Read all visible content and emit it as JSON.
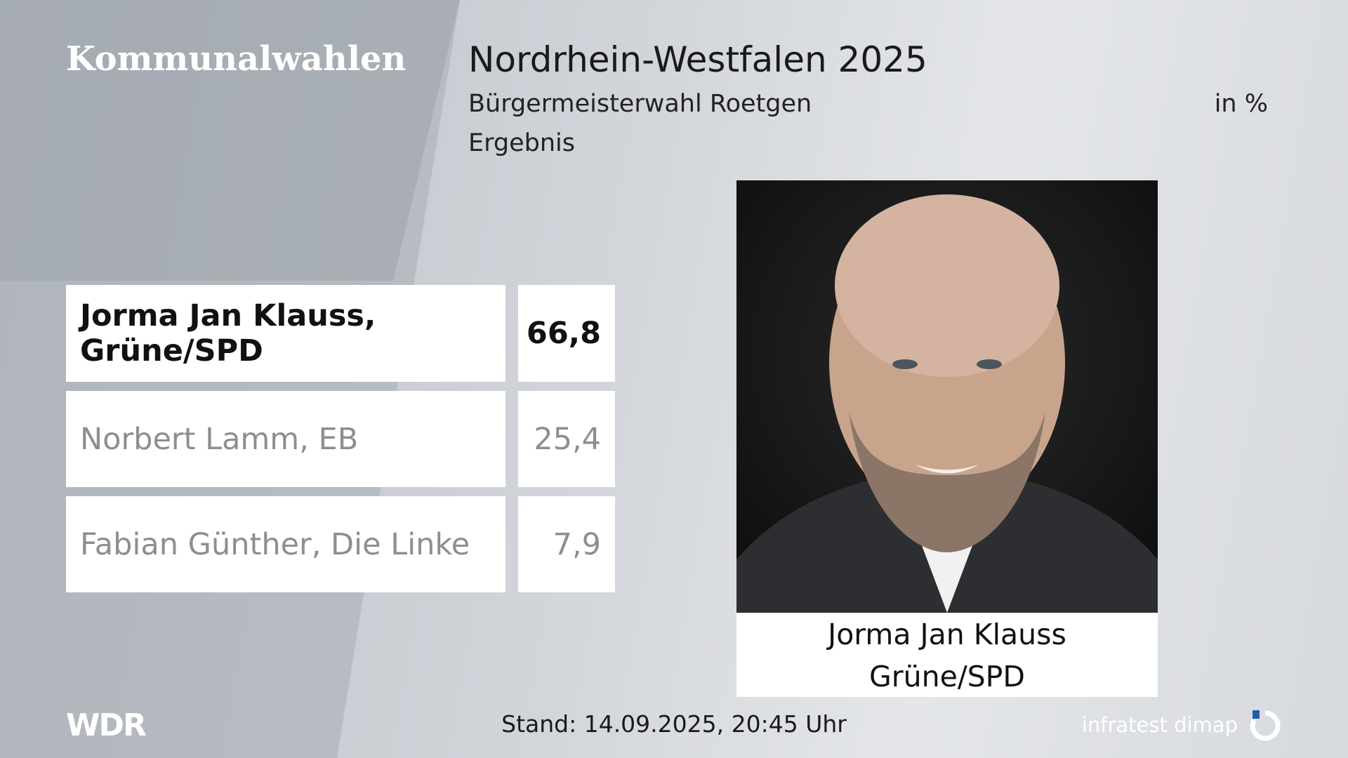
{
  "header": {
    "brand": "Kommunalwahlen",
    "title": "Nordrhein-Westfalen 2025",
    "subtitle": "Bürgermeisterwahl Roetgen",
    "unit": "in %",
    "status": "Ergebnis"
  },
  "table": {
    "rows": [
      [
        "Jorma Jan Klauss, Grüne/SPD",
        "66,8"
      ],
      [
        "Norbert Lamm, EB",
        "25,4"
      ],
      [
        "Fabian Günther, Die Linke",
        "7,9"
      ]
    ]
  },
  "photo": {
    "name": "Jorma Jan Klauss",
    "party": "Grüne/SPD"
  },
  "footer": {
    "logo": "WDR",
    "timestamp": "Stand: 14.09.2025, 20:45 Uhr",
    "source": "infratest dimap"
  }
}
